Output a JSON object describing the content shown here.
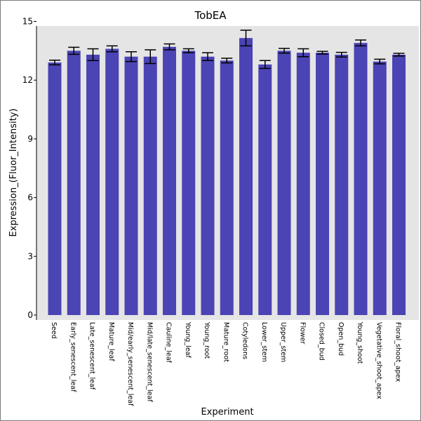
{
  "chart_data": {
    "type": "bar",
    "title": "TobEA",
    "xlabel": "Experiment",
    "ylabel": "Expression_(Fluor_Intensity)",
    "ylim": [
      0,
      15
    ],
    "yticks": [
      "0",
      "3",
      "6",
      "9",
      "12",
      "15"
    ],
    "grid": false,
    "categories": [
      "Seed",
      "Early_senescent_leaf",
      "Late_senescent_leaf",
      "Mature_leaf",
      "Mid/early_senescent_leaf",
      "Mid/late_senescent_leaf",
      "Cauline_leaf",
      "Young_leaf",
      "Young_root",
      "Mature_root",
      "Cotyledons",
      "Lower_stem",
      "Upper_stem",
      "Flower",
      "Closed_bud",
      "Open_bud",
      "Young_shoot",
      "Vegetative_shoot_apex",
      "Floral_shoot_apex"
    ],
    "values": [
      12.9,
      13.5,
      13.3,
      13.6,
      13.2,
      13.2,
      13.7,
      13.5,
      13.2,
      13.0,
      14.15,
      12.8,
      13.5,
      13.4,
      13.4,
      13.3,
      13.9,
      12.95,
      13.3
    ],
    "errors": [
      0.12,
      0.18,
      0.3,
      0.15,
      0.25,
      0.35,
      0.15,
      0.1,
      0.2,
      0.12,
      0.4,
      0.2,
      0.12,
      0.2,
      0.07,
      0.12,
      0.15,
      0.12,
      0.07
    ],
    "colors": {
      "bar": "#4b44b4",
      "plot_bg": "#e5e5e5",
      "error": "#000000"
    }
  }
}
